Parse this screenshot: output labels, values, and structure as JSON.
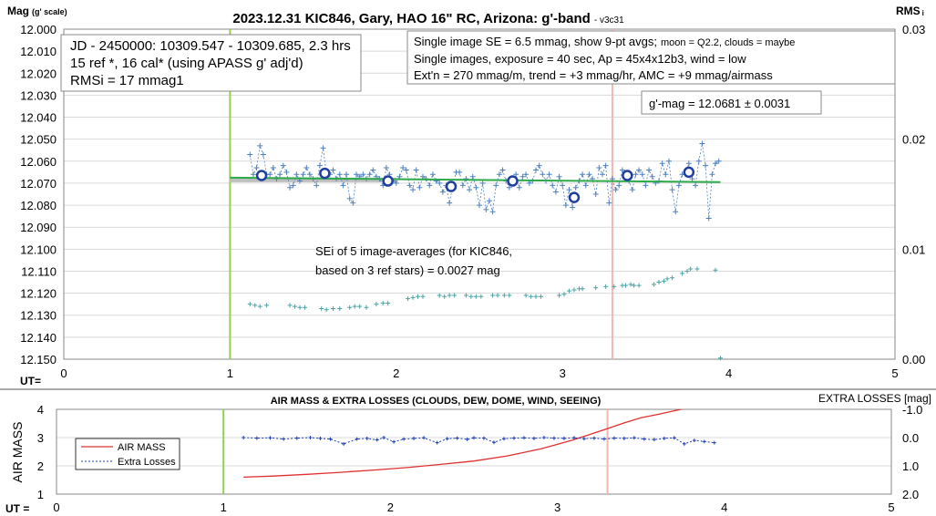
{
  "chart_data": [
    {
      "type": "scatter",
      "title": "2023.12.31 KIC846, Gary, HAO 16\" RC, Arizona: g'-band",
      "version": "- v3c31",
      "ylabel": "Mag",
      "ylabel_unit": "(g' scale)",
      "y2label": "RMS",
      "y2label_suffix": "i",
      "xlabel": "UT=",
      "xlim": [
        0,
        5
      ],
      "ylim": [
        12.0,
        12.15
      ],
      "y_inverted": true,
      "y2lim": [
        0.0,
        0.03
      ],
      "x_ticks": [
        "0",
        "1",
        "2",
        "3",
        "4",
        "5"
      ],
      "y_ticks": [
        "12.000",
        "12.010",
        "12.020",
        "12.030",
        "12.040",
        "12.050",
        "12.060",
        "12.070",
        "12.080",
        "12.090",
        "12.100",
        "12.110",
        "12.120",
        "12.130",
        "12.140",
        "12.150"
      ],
      "y2_ticks": [
        "0.00",
        "0.01",
        "0.02",
        "0.03"
      ],
      "grid": "horizontal",
      "info_left": [
        "JD - 2450000: 10309.547 - 10309.685, 2.3 hrs",
        "15 ref *, 16 cal* (using APASS g' adj'd)",
        "RMSi = 17 mmag1"
      ],
      "info_right": [
        "Single image SE = 6.5 mmag, show  9-pt avgs;",
        "moon = Q2.2, clouds = maybe",
        "Single images, exposure = 40 sec, Ap = 45x4x12b3, wind = low",
        "Ext'n = 270 mmag/m, trend = +3 mmag/hr, AMC = +9 mmag/airmass"
      ],
      "result": "g'-mag = 12.0681 ± 0.0031",
      "sei_note": [
        "SEi of 5 image-averages (for KIC846,",
        "based on 3 ref stars) = 0.0027 mag"
      ],
      "vlines": [
        {
          "x": 1.0,
          "color": "#92d050"
        },
        {
          "x": 3.3,
          "color": "#f4b6b0"
        }
      ],
      "series": [
        {
          "kind": "single-images",
          "x": [
            1.12,
            1.14,
            1.16,
            1.18,
            1.2,
            1.22,
            1.24,
            1.26,
            1.28,
            1.3,
            1.32,
            1.34,
            1.36,
            1.38,
            1.4,
            1.42,
            1.44,
            1.46,
            1.48,
            1.5,
            1.52,
            1.54,
            1.56,
            1.58,
            1.6,
            1.62,
            1.64,
            1.66,
            1.68,
            1.7,
            1.72,
            1.74,
            1.76,
            1.78,
            1.8,
            1.82,
            1.84,
            1.86,
            1.88,
            1.9,
            1.92,
            1.94,
            1.96,
            1.98,
            2.0,
            2.02,
            2.04,
            2.06,
            2.08,
            2.1,
            2.12,
            2.14,
            2.16,
            2.18,
            2.2,
            2.22,
            2.24,
            2.26,
            2.28,
            2.3,
            2.32,
            2.34,
            2.36,
            2.38,
            2.4,
            2.42,
            2.44,
            2.46,
            2.48,
            2.5,
            2.52,
            2.54,
            2.56,
            2.58,
            2.6,
            2.62,
            2.64,
            2.66,
            2.68,
            2.7,
            2.72,
            2.74,
            2.76,
            2.78,
            2.8,
            2.82,
            2.84,
            2.86,
            2.88,
            2.9,
            2.92,
            2.94,
            2.96,
            2.98,
            3.0,
            3.02,
            3.04,
            3.06,
            3.08,
            3.1,
            3.12,
            3.14,
            3.16,
            3.18,
            3.2,
            3.22,
            3.24,
            3.26,
            3.28,
            3.3,
            3.32,
            3.34,
            3.36,
            3.38,
            3.4,
            3.42,
            3.44,
            3.46,
            3.48,
            3.5,
            3.52,
            3.54,
            3.56,
            3.58,
            3.6,
            3.62,
            3.64,
            3.66,
            3.68,
            3.7,
            3.72,
            3.74,
            3.76,
            3.78,
            3.8,
            3.82,
            3.84,
            3.86,
            3.88,
            3.9,
            3.92,
            3.94
          ],
          "y": [
            12.057,
            12.066,
            12.063,
            12.053,
            12.057,
            12.066,
            12.066,
            12.063,
            12.068,
            12.066,
            12.062,
            12.065,
            12.072,
            12.071,
            12.066,
            12.069,
            12.066,
            12.063,
            12.066,
            12.068,
            12.071,
            12.062,
            12.054,
            12.066,
            12.066,
            12.064,
            12.068,
            12.066,
            12.071,
            12.066,
            12.077,
            12.079,
            12.066,
            12.067,
            12.066,
            12.068,
            12.066,
            12.064,
            12.067,
            12.068,
            12.071,
            12.063,
            12.066,
            12.069,
            12.07,
            12.067,
            12.063,
            12.064,
            12.071,
            12.073,
            12.064,
            12.072,
            12.067,
            12.068,
            12.071,
            12.066,
            12.069,
            12.07,
            12.074,
            12.071,
            12.079,
            12.071,
            12.065,
            12.065,
            12.071,
            12.068,
            12.073,
            12.067,
            12.072,
            12.08,
            12.07,
            12.082,
            12.078,
            12.083,
            12.071,
            12.066,
            12.064,
            12.069,
            12.072,
            12.069,
            12.066,
            12.072,
            12.067,
            12.066,
            12.07,
            12.069,
            12.064,
            12.062,
            12.066,
            12.069,
            12.066,
            12.071,
            12.074,
            12.067,
            12.071,
            12.08,
            12.073,
            12.081,
            12.072,
            12.069,
            12.066,
            12.071,
            12.066,
            12.068,
            12.075,
            12.063,
            12.066,
            12.062,
            12.079,
            12.068,
            12.073,
            12.071,
            12.064,
            12.067,
            12.069,
            12.073,
            12.066,
            12.064,
            12.066,
            12.071,
            12.064,
            12.067,
            12.07,
            12.069,
            12.061,
            12.066,
            12.06,
            12.073,
            12.083,
            12.071,
            12.066,
            12.066,
            12.061,
            12.068,
            12.071,
            12.06,
            12.052,
            12.062,
            12.086,
            12.066,
            12.061,
            12.06
          ]
        },
        {
          "kind": "9-pt-averages",
          "x": [
            1.19,
            1.57,
            1.95,
            2.33,
            2.7,
            3.07,
            3.39,
            3.76
          ],
          "y": [
            12.0665,
            12.0655,
            12.069,
            12.0715,
            12.069,
            12.0765,
            12.0665,
            12.065
          ]
        },
        {
          "kind": "trend",
          "x": [
            1.0,
            3.95
          ],
          "y": [
            12.0675,
            12.0695
          ]
        },
        {
          "kind": "mean",
          "x": [
            1.0,
            2.0
          ],
          "y": [
            12.0685,
            12.0685
          ]
        },
        {
          "kind": "rms",
          "x": [
            1.12,
            1.15,
            1.18,
            1.22,
            1.36,
            1.39,
            1.42,
            1.45,
            1.55,
            1.58,
            1.62,
            1.66,
            1.72,
            1.75,
            1.78,
            1.82,
            1.88,
            1.92,
            1.95,
            2.07,
            2.1,
            2.13,
            2.16,
            2.26,
            2.29,
            2.32,
            2.35,
            2.42,
            2.45,
            2.48,
            2.51,
            2.58,
            2.61,
            2.65,
            2.68,
            2.78,
            2.81,
            2.84,
            2.87,
            2.98,
            3.01,
            3.04,
            3.07,
            3.1,
            3.12,
            3.2,
            3.26,
            3.31,
            3.36,
            3.38,
            3.41,
            3.43,
            3.46,
            3.55,
            3.58,
            3.61,
            3.63,
            3.66,
            3.72,
            3.75,
            3.77,
            3.81,
            3.92,
            3.95
          ],
          "y": [
            0.005,
            0.0049,
            0.0048,
            0.0049,
            0.0049,
            0.0048,
            0.0047,
            0.0047,
            0.0046,
            0.0045,
            0.0046,
            0.0046,
            0.0047,
            0.0048,
            0.0048,
            0.0047,
            0.005,
            0.0051,
            0.0051,
            0.0055,
            0.0056,
            0.0057,
            0.0057,
            0.0058,
            0.0057,
            0.0058,
            0.0058,
            0.0058,
            0.0057,
            0.0057,
            0.0057,
            0.0058,
            0.0058,
            0.0058,
            0.0058,
            0.0058,
            0.0057,
            0.0057,
            0.0057,
            0.0058,
            0.0059,
            0.0062,
            0.0063,
            0.0064,
            0.0064,
            0.0065,
            0.0066,
            0.0066,
            0.0067,
            0.0067,
            0.0068,
            0.0067,
            0.0067,
            0.0068,
            0.007,
            0.0071,
            0.0073,
            0.0074,
            0.0078,
            0.008,
            0.0082,
            0.0082,
            0.0081,
            0.0001
          ]
        }
      ]
    },
    {
      "type": "line",
      "title": "AIR MASS & EXTRA LOSSES (CLOUDS, DEW, DOME, WIND, SEEING)",
      "ylabel": "AIR MASS",
      "y2label": "EXTRA LOSSES [mag]",
      "xlabel": "UT =",
      "xlim": [
        0,
        5
      ],
      "ylim": [
        1,
        4
      ],
      "y2lim": [
        2.0,
        -1.0
      ],
      "x_ticks": [
        "0",
        "1",
        "2",
        "3",
        "4",
        "5"
      ],
      "y_ticks": [
        "1",
        "2",
        "3",
        "4"
      ],
      "y2_ticks": [
        "-1.0",
        "0.0",
        "1.0",
        "2.0"
      ],
      "legend": [
        "AIR MASS",
        "Extra Losses"
      ],
      "legend_position": "left",
      "vlines": [
        {
          "x": 1.0,
          "color": "#92d050"
        },
        {
          "x": 3.3,
          "color": "#f4b6b0"
        }
      ],
      "series": [
        {
          "name": "AIR MASS",
          "color": "#e03030",
          "x": [
            1.12,
            1.3,
            1.5,
            1.7,
            1.9,
            2.1,
            2.3,
            2.5,
            2.7,
            2.9,
            3.0,
            3.1,
            3.2,
            3.3,
            3.4,
            3.5,
            3.6,
            3.7,
            3.78,
            3.8
          ],
          "y": [
            1.6,
            1.64,
            1.7,
            1.77,
            1.85,
            1.94,
            2.05,
            2.17,
            2.35,
            2.6,
            2.76,
            2.93,
            3.12,
            3.32,
            3.52,
            3.7,
            3.82,
            3.95,
            4.05,
            4.08
          ]
        },
        {
          "name": "Extra Losses",
          "color": "#1f3fb0",
          "x": [
            1.12,
            1.2,
            1.28,
            1.36,
            1.44,
            1.52,
            1.58,
            1.64,
            1.72,
            1.8,
            1.86,
            1.92,
            1.96,
            2.02,
            2.08,
            2.14,
            2.2,
            2.28,
            2.34,
            2.4,
            2.46,
            2.5,
            2.56,
            2.62,
            2.68,
            2.74,
            2.8,
            2.86,
            2.92,
            2.98,
            3.04,
            3.1,
            3.16,
            3.22,
            3.28,
            3.34,
            3.4,
            3.46,
            3.52,
            3.58,
            3.64,
            3.7,
            3.76,
            3.82,
            3.88,
            3.94
          ],
          "y": [
            0.0,
            0.02,
            0.01,
            0.05,
            0.02,
            0.0,
            0.03,
            0.05,
            0.22,
            0.05,
            0.03,
            0.08,
            0.0,
            0.15,
            0.05,
            0.03,
            0.01,
            0.18,
            0.04,
            0.02,
            0.06,
            0.01,
            0.02,
            0.17,
            0.04,
            0.02,
            0.01,
            0.03,
            0.0,
            0.02,
            0.03,
            0.01,
            0.04,
            0.02,
            0.05,
            0.02,
            0.03,
            0.01,
            0.05,
            0.07,
            0.03,
            0.01,
            0.22,
            0.1,
            0.14,
            0.18
          ]
        }
      ]
    }
  ]
}
